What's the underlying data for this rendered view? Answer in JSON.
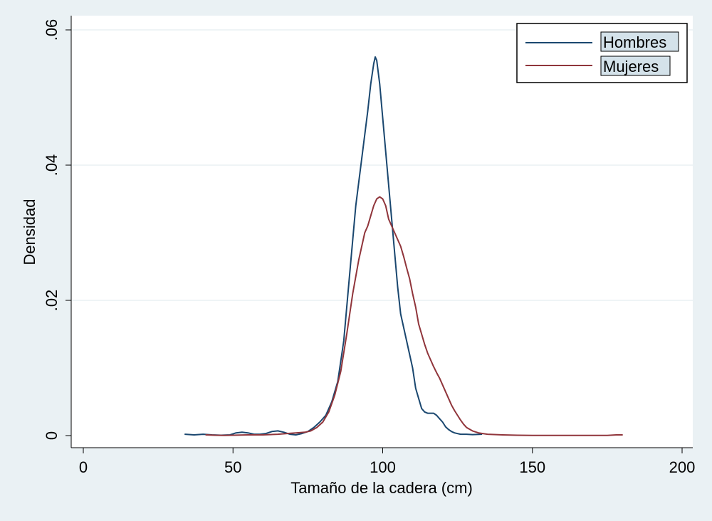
{
  "chart_data": {
    "type": "line",
    "title": "",
    "xlabel": "Tamaño de la cadera (cm)",
    "ylabel": "Densidad",
    "xlim": [
      0,
      200
    ],
    "ylim": [
      0,
      0.06
    ],
    "x_ticks": [
      0,
      50,
      100,
      150,
      200
    ],
    "x_tick_labels": [
      "0",
      "50",
      "100",
      "150",
      "200"
    ],
    "y_ticks": [
      0,
      0.02,
      0.04,
      0.06
    ],
    "y_tick_labels": [
      "0",
      ".02",
      ".04",
      ".06"
    ],
    "grid": "horizontal",
    "legend_position": "top-right",
    "series": [
      {
        "name": "Hombres",
        "color": "#1a476f",
        "points": [
          [
            34,
            0.0002
          ],
          [
            37,
            0.0001
          ],
          [
            40,
            0.0002
          ],
          [
            43,
            0.0001
          ],
          [
            46,
            5e-05
          ],
          [
            49,
            0.0001
          ],
          [
            51,
            0.0004
          ],
          [
            53,
            0.0005
          ],
          [
            55,
            0.0004
          ],
          [
            57,
            0.0002
          ],
          [
            59,
            0.0002
          ],
          [
            61,
            0.0003
          ],
          [
            63,
            0.0006
          ],
          [
            65,
            0.0007
          ],
          [
            67,
            0.0005
          ],
          [
            69,
            0.0002
          ],
          [
            71,
            0.0001
          ],
          [
            73,
            0.0003
          ],
          [
            75,
            0.0006
          ],
          [
            77,
            0.0012
          ],
          [
            79,
            0.002
          ],
          [
            81,
            0.003
          ],
          [
            83,
            0.005
          ],
          [
            85,
            0.008
          ],
          [
            87,
            0.014
          ],
          [
            89,
            0.024
          ],
          [
            91,
            0.034
          ],
          [
            93,
            0.041
          ],
          [
            95,
            0.048
          ],
          [
            96,
            0.052
          ],
          [
            97,
            0.055
          ],
          [
            97.5,
            0.056
          ],
          [
            98,
            0.0555
          ],
          [
            99,
            0.052
          ],
          [
            100,
            0.047
          ],
          [
            101,
            0.042
          ],
          [
            102,
            0.037
          ],
          [
            103,
            0.032
          ],
          [
            104,
            0.027
          ],
          [
            105,
            0.022
          ],
          [
            106,
            0.018
          ],
          [
            107,
            0.016
          ],
          [
            108,
            0.014
          ],
          [
            109,
            0.012
          ],
          [
            110,
            0.01
          ],
          [
            111,
            0.007
          ],
          [
            112,
            0.0055
          ],
          [
            113,
            0.004
          ],
          [
            114,
            0.0035
          ],
          [
            115,
            0.0033
          ],
          [
            116,
            0.0033
          ],
          [
            117,
            0.0033
          ],
          [
            118,
            0.003
          ],
          [
            119,
            0.0025
          ],
          [
            120,
            0.002
          ],
          [
            121,
            0.0013
          ],
          [
            122,
            0.0009
          ],
          [
            123,
            0.0006
          ],
          [
            124,
            0.0004
          ],
          [
            126,
            0.0002
          ],
          [
            128,
            0.0002
          ],
          [
            130,
            0.00015
          ],
          [
            133,
            0.0002
          ]
        ]
      },
      {
        "name": "Mujeres",
        "color": "#90353b",
        "points": [
          [
            41,
            0.0001
          ],
          [
            44,
            5e-05
          ],
          [
            47,
            3e-05
          ],
          [
            50,
            5e-05
          ],
          [
            55,
            0.0001
          ],
          [
            60,
            0.0001
          ],
          [
            65,
            0.0002
          ],
          [
            68,
            0.0003
          ],
          [
            71,
            0.0004
          ],
          [
            74,
            0.0005
          ],
          [
            76,
            0.0007
          ],
          [
            78,
            0.0012
          ],
          [
            80,
            0.002
          ],
          [
            82,
            0.0035
          ],
          [
            84,
            0.006
          ],
          [
            86,
            0.0095
          ],
          [
            88,
            0.015
          ],
          [
            90,
            0.021
          ],
          [
            92,
            0.026
          ],
          [
            94,
            0.03
          ],
          [
            95,
            0.031
          ],
          [
            96,
            0.0325
          ],
          [
            97,
            0.034
          ],
          [
            98,
            0.035
          ],
          [
            99,
            0.0353
          ],
          [
            100,
            0.035
          ],
          [
            101,
            0.034
          ],
          [
            102,
            0.032
          ],
          [
            103,
            0.031
          ],
          [
            104,
            0.03
          ],
          [
            105,
            0.029
          ],
          [
            106,
            0.028
          ],
          [
            107,
            0.0265
          ],
          [
            108,
            0.0248
          ],
          [
            109,
            0.0232
          ],
          [
            110,
            0.021
          ],
          [
            111,
            0.019
          ],
          [
            112,
            0.0165
          ],
          [
            113,
            0.015
          ],
          [
            114,
            0.0135
          ],
          [
            115,
            0.0122
          ],
          [
            116,
            0.0112
          ],
          [
            117,
            0.0102
          ],
          [
            118,
            0.0093
          ],
          [
            119,
            0.0085
          ],
          [
            120,
            0.0075
          ],
          [
            121,
            0.0065
          ],
          [
            122,
            0.0055
          ],
          [
            123,
            0.0045
          ],
          [
            124,
            0.0037
          ],
          [
            125,
            0.003
          ],
          [
            126,
            0.0023
          ],
          [
            127,
            0.0017
          ],
          [
            128,
            0.0012
          ],
          [
            130,
            0.0007
          ],
          [
            132,
            0.0004
          ],
          [
            135,
            0.0002
          ],
          [
            140,
            0.0001
          ],
          [
            145,
            5e-05
          ],
          [
            150,
            2e-05
          ],
          [
            160,
            2e-05
          ],
          [
            170,
            2e-05
          ],
          [
            175,
            2e-05
          ],
          [
            178,
            0.0001
          ],
          [
            180,
            0.0001
          ]
        ]
      }
    ]
  }
}
